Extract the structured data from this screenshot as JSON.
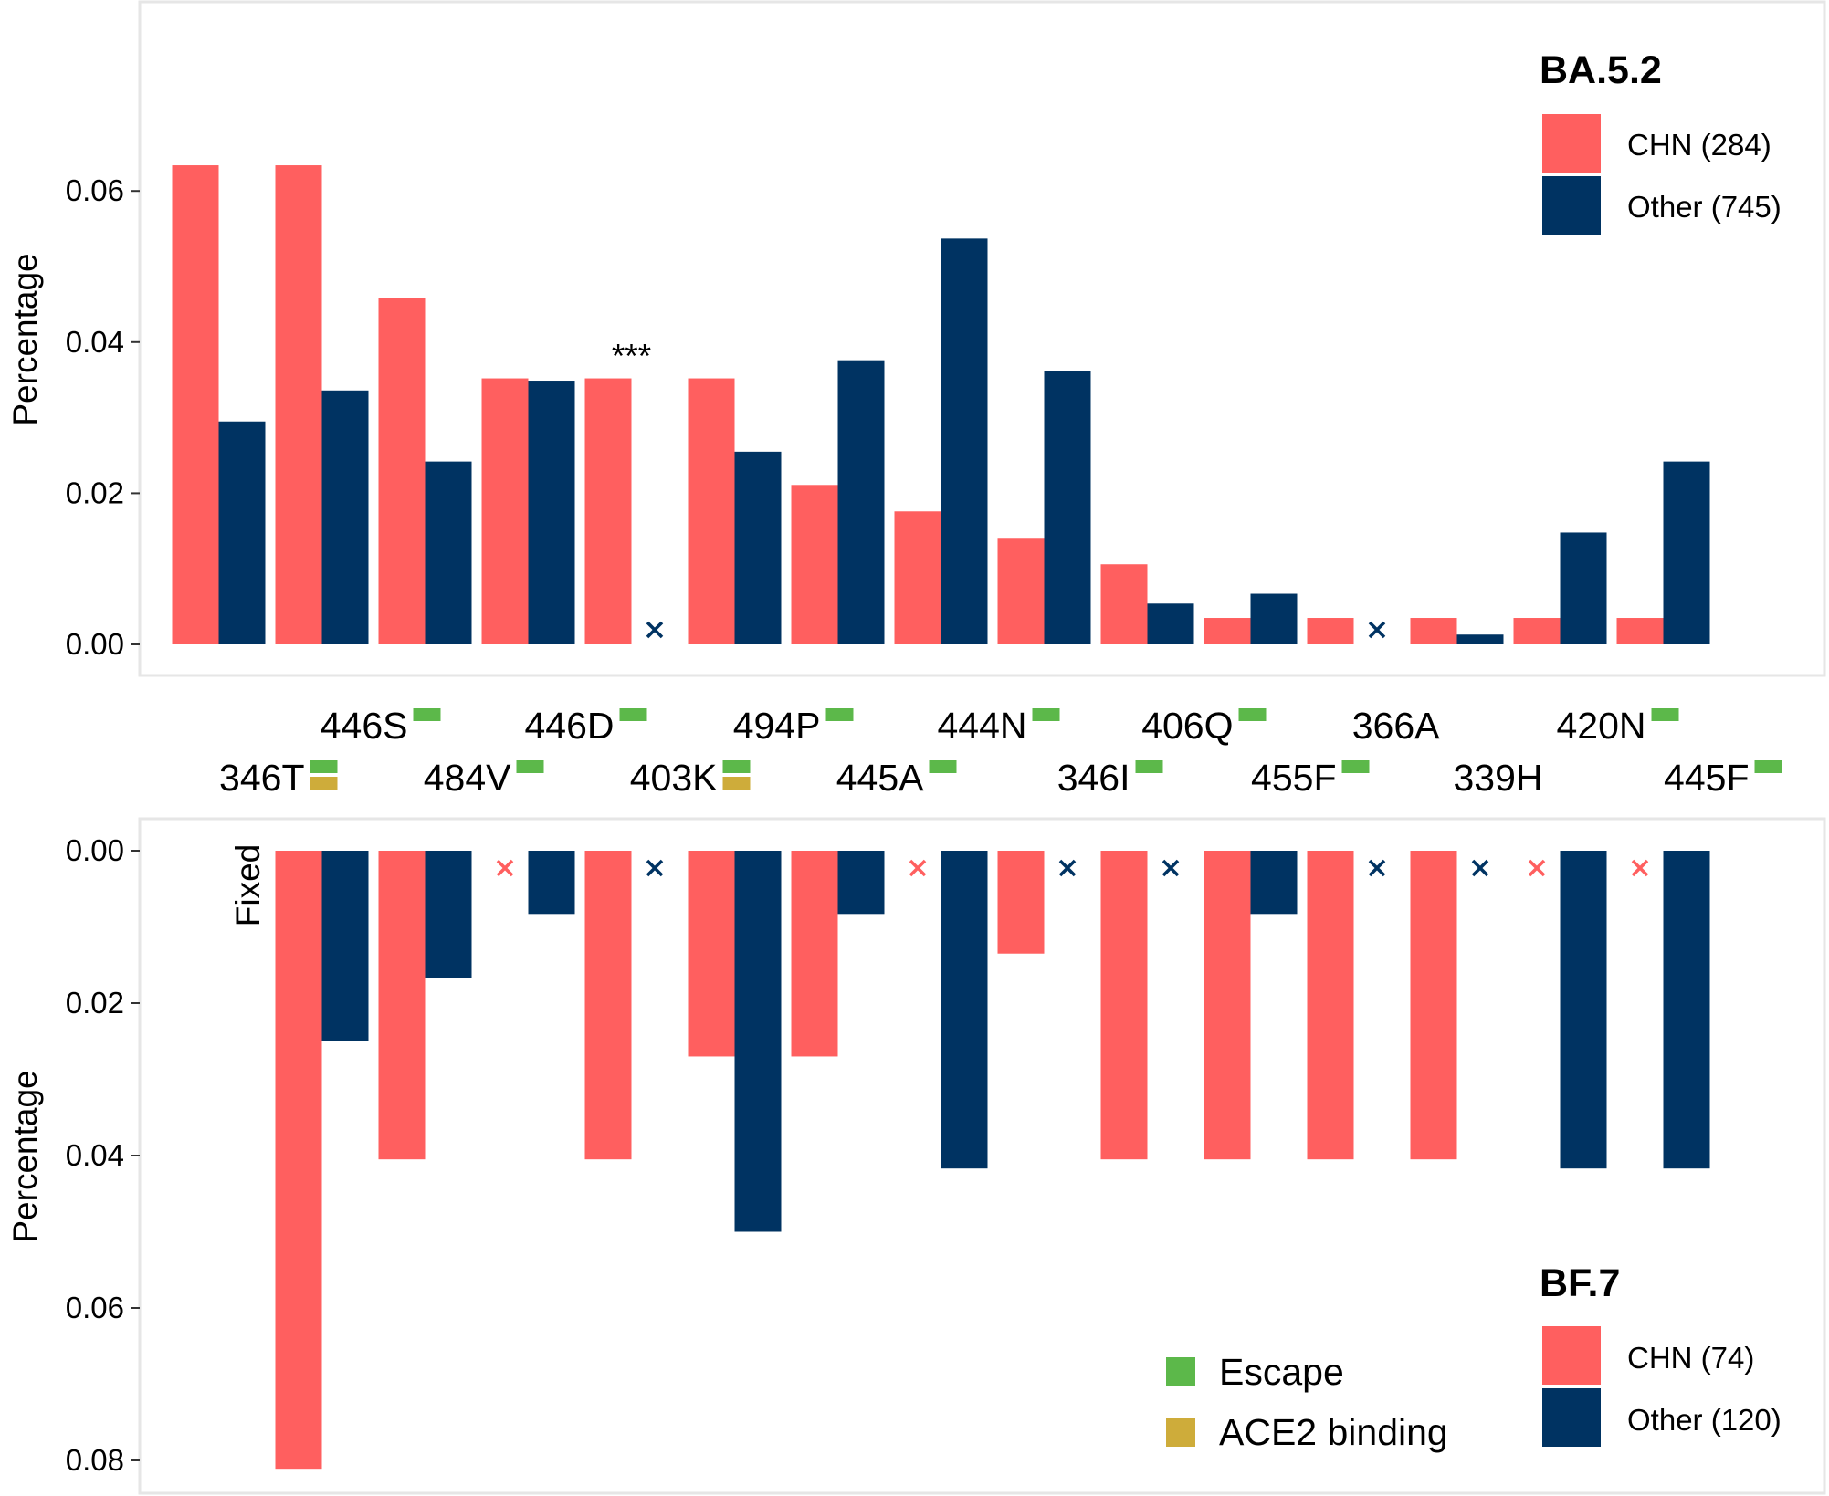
{
  "colors": {
    "chn": "#FF5F5F",
    "other": "#003362",
    "escape": "#5CB84A",
    "ace2": "#CEAC3A",
    "panel_border": "#E6E6E6"
  },
  "mutation_labels": [
    "346T",
    "446S",
    "484V",
    "446D",
    "403K",
    "494P",
    "445A",
    "444N",
    "346I",
    "406Q",
    "455F",
    "366A",
    "339H",
    "420N",
    "445F"
  ],
  "mutation_annotations": [
    [
      "escape",
      "ace2"
    ],
    [
      "escape"
    ],
    [
      "escape"
    ],
    [
      "escape"
    ],
    [
      "escape",
      "ace2"
    ],
    [
      "escape"
    ],
    [
      "escape"
    ],
    [
      "escape"
    ],
    [
      "escape"
    ],
    [
      "escape"
    ],
    [
      "escape"
    ],
    [],
    [],
    [
      "escape"
    ],
    [
      "escape"
    ]
  ],
  "category_legend": {
    "escape": "Escape",
    "ace2": "ACE2 binding"
  },
  "chart_data": [
    {
      "type": "bar",
      "panel": "top",
      "title": "",
      "xlabel": "",
      "ylabel": "Percentage",
      "ylim": [
        0,
        0.065
      ],
      "yticks": [
        "0.00",
        "0.02",
        "0.04",
        "0.06"
      ],
      "grid": false,
      "legend": {
        "title": "BA.5.2",
        "position": "top-right"
      },
      "categories": [
        "346T",
        "446S",
        "484V",
        "446D",
        "403K",
        "494P",
        "445A",
        "444N",
        "346I",
        "406Q",
        "455F",
        "366A",
        "339H",
        "420N",
        "445F"
      ],
      "series": [
        {
          "name": "CHN (284)",
          "values": [
            0.0634,
            0.0634,
            0.0458,
            0.0352,
            0.0352,
            0.0352,
            0.0211,
            0.0176,
            0.0141,
            0.0106,
            0.0035,
            0.0035,
            0.0035,
            0.0035,
            0.0035
          ]
        },
        {
          "name": "Other (745)",
          "values": [
            0.0295,
            0.0336,
            0.0242,
            0.0349,
            0,
            0.0255,
            0.0376,
            0.0537,
            0.0362,
            0.0054,
            0.0067,
            0,
            0.0013,
            0.0148,
            0.0242
          ]
        }
      ],
      "annotations": [
        {
          "category": "403K",
          "text": "***"
        }
      ]
    },
    {
      "type": "bar",
      "panel": "bottom",
      "title": "",
      "xlabel": "",
      "ylabel": "Percentage",
      "ylim": [
        0,
        0.08
      ],
      "yticks": [
        "0.00",
        "0.02",
        "0.04",
        "0.06",
        "0.08"
      ],
      "y_reversed": true,
      "grid": false,
      "legend": {
        "title": "BF.7",
        "position": "bottom-right"
      },
      "categories": [
        "346T",
        "446S",
        "484V",
        "446D",
        "403K",
        "494P",
        "445A",
        "444N",
        "346I",
        "406Q",
        "455F",
        "366A",
        "339H",
        "420N",
        "445F"
      ],
      "fixed_category": "346T",
      "fixed_label": "Fixed",
      "series": [
        {
          "name": "CHN (74)",
          "values": [
            null,
            0.0811,
            0.0405,
            0,
            0.0405,
            0.027,
            0.027,
            0,
            0.0135,
            0.0405,
            0.0405,
            0.0405,
            0.0405,
            0,
            0
          ]
        },
        {
          "name": "Other (120)",
          "values": [
            null,
            0.025,
            0.0167,
            0.0083,
            0,
            0.05,
            0.0083,
            0.0417,
            0,
            0,
            0.0083,
            0,
            0,
            0.0417,
            0.0417
          ]
        }
      ]
    }
  ]
}
